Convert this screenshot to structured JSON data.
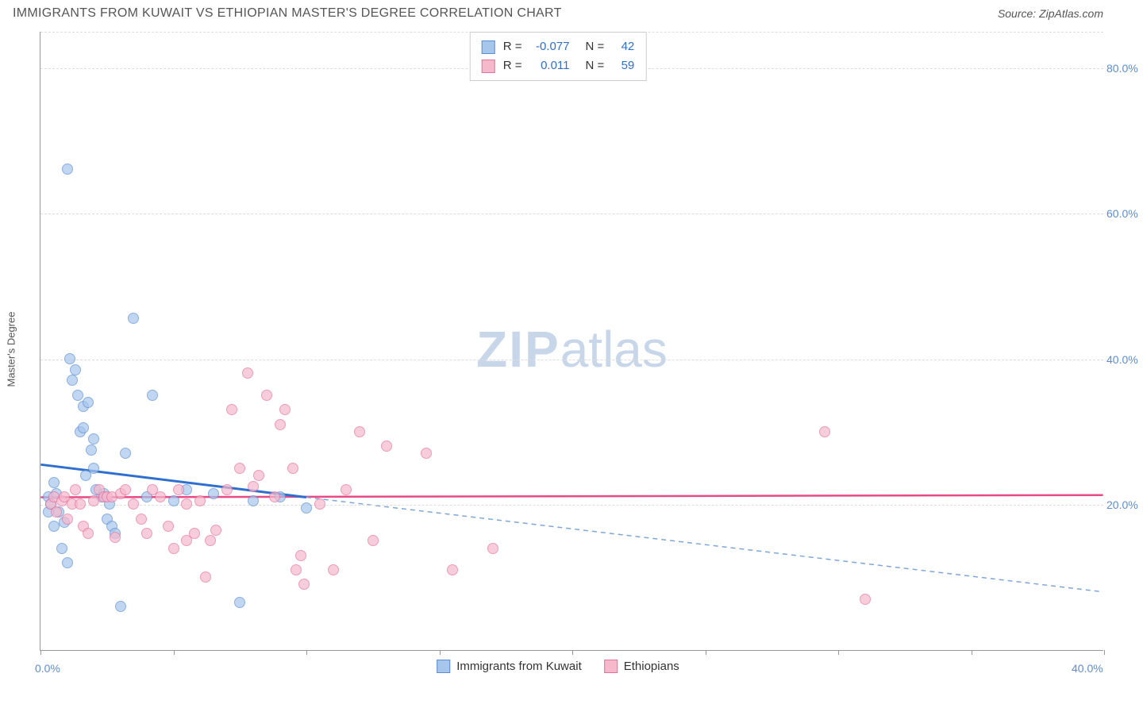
{
  "header": {
    "title": "IMMIGRANTS FROM KUWAIT VS ETHIOPIAN MASTER'S DEGREE CORRELATION CHART",
    "source_label": "Source:",
    "source_value": "ZipAtlas.com"
  },
  "watermark": {
    "zip": "ZIP",
    "atlas": "atlas"
  },
  "chart": {
    "type": "scatter",
    "y_axis_label": "Master's Degree",
    "background_color": "#ffffff",
    "grid_color": "#dddddd",
    "axis_color": "#999999",
    "xlim": [
      0,
      40
    ],
    "ylim": [
      0,
      85
    ],
    "x_ticks": [
      0,
      5,
      10,
      15,
      20,
      25,
      30,
      35,
      40
    ],
    "x_tick_labels_shown": {
      "0": "0.0%",
      "40": "40.0%"
    },
    "y_ticks": [
      20,
      40,
      60,
      80
    ],
    "y_tick_labels": {
      "20": "20.0%",
      "40": "40.0%",
      "60": "60.0%",
      "80": "80.0%"
    },
    "series": [
      {
        "name": "Immigrants from Kuwait",
        "color_fill": "#a6c6ec",
        "color_stroke": "#5b8dd6",
        "marker_radius": 7,
        "stats": {
          "R": "-0.077",
          "N": "42"
        },
        "trend": {
          "solid_color": "#2f6fcf",
          "solid_width": 3,
          "dash_color": "#7fa6d8",
          "dash_pattern": "6 5",
          "x1": 0,
          "y1": 25.5,
          "x2_solid": 10,
          "y2_solid": 21.0,
          "x2_dash": 40,
          "y2_dash": 8.0
        },
        "points": [
          [
            0.3,
            19.0
          ],
          [
            0.3,
            21.0
          ],
          [
            0.4,
            20.0
          ],
          [
            0.5,
            23.0
          ],
          [
            0.5,
            17.0
          ],
          [
            0.6,
            21.5
          ],
          [
            0.7,
            19.0
          ],
          [
            0.8,
            14.0
          ],
          [
            1.0,
            66.0
          ],
          [
            1.1,
            40.0
          ],
          [
            1.2,
            37.0
          ],
          [
            1.3,
            38.5
          ],
          [
            1.4,
            35.0
          ],
          [
            1.5,
            30.0
          ],
          [
            1.6,
            33.5
          ],
          [
            1.6,
            30.5
          ],
          [
            1.8,
            34.0
          ],
          [
            1.9,
            27.5
          ],
          [
            2.0,
            25.0
          ],
          [
            2.0,
            29.0
          ],
          [
            2.1,
            22.0
          ],
          [
            2.3,
            21.0
          ],
          [
            2.4,
            21.5
          ],
          [
            2.5,
            18.0
          ],
          [
            2.6,
            20.0
          ],
          [
            2.7,
            17.0
          ],
          [
            2.8,
            16.0
          ],
          [
            3.0,
            6.0
          ],
          [
            1.0,
            12.0
          ],
          [
            0.9,
            17.5
          ],
          [
            3.5,
            45.5
          ],
          [
            4.2,
            35.0
          ],
          [
            4.0,
            21.0
          ],
          [
            5.0,
            20.5
          ],
          [
            5.5,
            22.0
          ],
          [
            6.5,
            21.5
          ],
          [
            7.5,
            6.5
          ],
          [
            8.0,
            20.5
          ],
          [
            9.0,
            21.0
          ],
          [
            10.0,
            19.5
          ],
          [
            3.2,
            27.0
          ],
          [
            1.7,
            24.0
          ]
        ]
      },
      {
        "name": "Ethiopians",
        "color_fill": "#f6b9cc",
        "color_stroke": "#e76f9c",
        "marker_radius": 7,
        "stats": {
          "R": "0.011",
          "N": "59"
        },
        "trend": {
          "solid_color": "#e84a84",
          "solid_width": 2.5,
          "x1": 0,
          "y1": 21.0,
          "x2_solid": 40,
          "y2_solid": 21.3
        },
        "points": [
          [
            0.4,
            20.0
          ],
          [
            0.5,
            21.0
          ],
          [
            0.6,
            19.0
          ],
          [
            0.8,
            20.5
          ],
          [
            0.9,
            21.0
          ],
          [
            1.0,
            18.0
          ],
          [
            1.2,
            20.0
          ],
          [
            1.3,
            22.0
          ],
          [
            1.5,
            20.0
          ],
          [
            1.6,
            17.0
          ],
          [
            1.8,
            16.0
          ],
          [
            2.0,
            20.5
          ],
          [
            2.2,
            22.0
          ],
          [
            2.4,
            21.0
          ],
          [
            2.5,
            21.0
          ],
          [
            2.7,
            21.0
          ],
          [
            2.8,
            15.5
          ],
          [
            3.0,
            21.5
          ],
          [
            3.2,
            22.0
          ],
          [
            3.5,
            20.0
          ],
          [
            3.8,
            18.0
          ],
          [
            4.0,
            16.0
          ],
          [
            4.2,
            22.0
          ],
          [
            4.5,
            21.0
          ],
          [
            4.8,
            17.0
          ],
          [
            5.0,
            14.0
          ],
          [
            5.2,
            22.0
          ],
          [
            5.5,
            15.0
          ],
          [
            5.8,
            16.0
          ],
          [
            6.0,
            20.5
          ],
          [
            6.2,
            10.0
          ],
          [
            6.4,
            15.0
          ],
          [
            6.6,
            16.5
          ],
          [
            7.0,
            22.0
          ],
          [
            7.2,
            33.0
          ],
          [
            7.5,
            25.0
          ],
          [
            7.8,
            38.0
          ],
          [
            8.0,
            22.5
          ],
          [
            8.2,
            24.0
          ],
          [
            8.5,
            35.0
          ],
          [
            8.8,
            21.0
          ],
          [
            9.0,
            31.0
          ],
          [
            9.2,
            33.0
          ],
          [
            9.5,
            25.0
          ],
          [
            9.6,
            11.0
          ],
          [
            9.8,
            13.0
          ],
          [
            9.9,
            9.0
          ],
          [
            11.5,
            22.0
          ],
          [
            10.5,
            20.0
          ],
          [
            11.0,
            11.0
          ],
          [
            12.0,
            30.0
          ],
          [
            12.5,
            15.0
          ],
          [
            13.0,
            28.0
          ],
          [
            14.5,
            27.0
          ],
          [
            15.5,
            11.0
          ],
          [
            17.0,
            14.0
          ],
          [
            29.5,
            30.0
          ],
          [
            31.0,
            7.0
          ],
          [
            5.5,
            20.0
          ]
        ]
      }
    ],
    "bottom_legend": [
      {
        "swatch_fill": "#a6c6ec",
        "swatch_stroke": "#5b8dd6",
        "label": "Immigrants from Kuwait"
      },
      {
        "swatch_fill": "#f6b9cc",
        "swatch_stroke": "#e76f9c",
        "label": "Ethiopians"
      }
    ],
    "label_fontsize": 14,
    "label_color": "#5b8dd6"
  }
}
